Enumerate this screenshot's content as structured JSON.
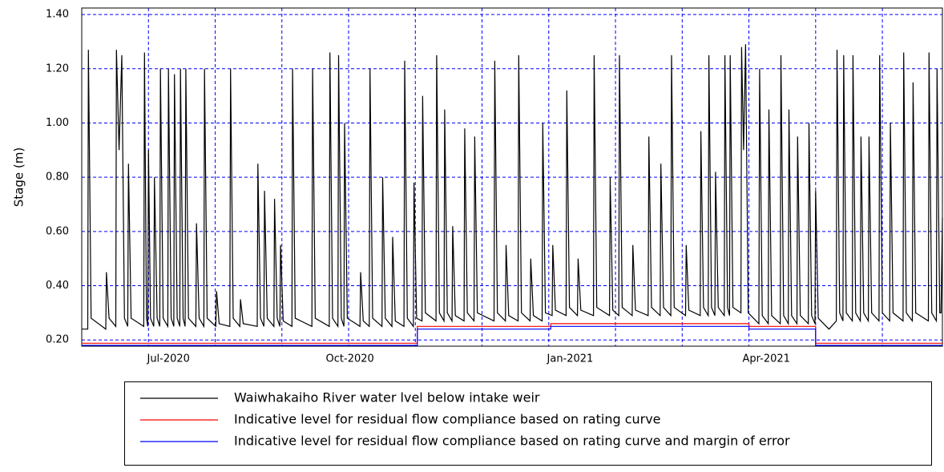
{
  "chart_data": {
    "type": "line",
    "ylabel": "Stage (m)",
    "xlim": [
      0,
      12.9
    ],
    "ylim": [
      0.177,
      1.424
    ],
    "xticks": [
      {
        "value": 1.3,
        "label": "Jul-2020"
      },
      {
        "value": 4.02,
        "label": "Oct-2020"
      },
      {
        "value": 7.32,
        "label": "Jan-2021"
      },
      {
        "value": 10.26,
        "label": "Apr-2021"
      }
    ],
    "xgrid": [
      1,
      2,
      3,
      4,
      5,
      6,
      7,
      8,
      9,
      10,
      11,
      12
    ],
    "yticks": [
      {
        "value": 0.2,
        "label": "0.20"
      },
      {
        "value": 0.4,
        "label": "0.40"
      },
      {
        "value": 0.6,
        "label": "0.60"
      },
      {
        "value": 0.8,
        "label": "0.80"
      },
      {
        "value": 1.0,
        "label": "1.00"
      },
      {
        "value": 1.2,
        "label": "1.20"
      },
      {
        "value": 1.4,
        "label": "1.40"
      }
    ],
    "grid": true,
    "grid_color": "#0000ff",
    "series": [
      {
        "name": "Waiwhakaiho River water lvel below intake weir",
        "color": "#000000",
        "x": [
          0,
          0.09,
          0.1,
          0.14,
          0.36,
          0.37,
          0.41,
          0.51,
          0.52,
          0.56,
          0.6,
          0.64,
          0.69,
          0.7,
          0.74,
          0.93,
          0.94,
          0.97,
          0.99,
          1.0,
          1.03,
          1.08,
          1.09,
          1.13,
          1.17,
          1.18,
          1.22,
          1.29,
          1.3,
          1.34,
          1.38,
          1.39,
          1.43,
          1.47,
          1.48,
          1.52,
          1.55,
          1.56,
          1.6,
          1.71,
          1.72,
          1.76,
          1.83,
          1.84,
          1.88,
          2.01,
          2.02,
          2.06,
          2.22,
          2.23,
          2.27,
          2.37,
          2.38,
          2.42,
          2.63,
          2.64,
          2.68,
          2.73,
          2.74,
          2.78,
          2.88,
          2.89,
          2.93,
          2.97,
          2.98,
          3.02,
          3.15,
          3.16,
          3.2,
          3.45,
          3.46,
          3.5,
          3.71,
          3.72,
          3.76,
          3.84,
          3.85,
          3.89,
          3.93,
          3.94,
          3.98,
          4.17,
          4.18,
          4.22,
          4.31,
          4.32,
          4.36,
          4.5,
          4.51,
          4.55,
          4.65,
          4.66,
          4.7,
          4.83,
          4.84,
          4.88,
          4.97,
          4.98,
          5.02,
          5.1,
          5.11,
          5.15,
          5.31,
          5.32,
          5.36,
          5.43,
          5.44,
          5.48,
          5.55,
          5.56,
          5.6,
          5.73,
          5.74,
          5.78,
          5.88,
          5.89,
          5.93,
          6.18,
          6.19,
          6.23,
          6.35,
          6.36,
          6.4,
          6.54,
          6.55,
          6.59,
          6.72,
          6.73,
          6.77,
          6.9,
          6.91,
          6.95,
          7.05,
          7.06,
          7.1,
          7.26,
          7.27,
          7.31,
          7.43,
          7.44,
          7.48,
          7.67,
          7.68,
          7.72,
          7.91,
          7.92,
          7.96,
          8.05,
          8.06,
          8.1,
          8.25,
          8.26,
          8.3,
          8.49,
          8.5,
          8.54,
          8.67,
          8.68,
          8.72,
          8.83,
          8.84,
          8.88,
          9.05,
          9.06,
          9.1,
          9.27,
          9.28,
          9.32,
          9.39,
          9.4,
          9.44,
          9.49,
          9.5,
          9.54,
          9.63,
          9.64,
          9.68,
          9.71,
          9.72,
          9.76,
          9.88,
          9.89,
          9.92,
          9.95,
          9.99,
          10.15,
          10.16,
          10.2,
          10.29,
          10.3,
          10.34,
          10.47,
          10.48,
          10.52,
          10.59,
          10.6,
          10.64,
          10.72,
          10.73,
          10.77,
          10.89,
          10.9,
          10.94,
          10.99,
          11.0,
          11.04,
          11.2,
          11.31,
          11.32,
          11.36,
          11.41,
          11.42,
          11.46,
          11.55,
          11.56,
          11.6,
          11.67,
          11.68,
          11.72,
          11.79,
          11.8,
          11.84,
          11.95,
          11.96,
          12.0,
          12.11,
          12.12,
          12.16,
          12.31,
          12.32,
          12.36,
          12.45,
          12.46,
          12.5,
          12.69,
          12.7,
          12.74,
          12.81,
          12.82,
          12.86,
          12.88,
          12.9
        ],
        "values": [
          0.24,
          0.24,
          1.27,
          0.28,
          0.24,
          0.45,
          0.28,
          0.25,
          1.27,
          0.9,
          1.25,
          0.28,
          0.25,
          0.85,
          0.28,
          0.25,
          1.26,
          0.28,
          0.25,
          0.9,
          0.28,
          0.25,
          0.8,
          0.28,
          0.25,
          1.2,
          0.28,
          0.25,
          1.2,
          0.28,
          0.25,
          1.18,
          0.28,
          0.25,
          1.2,
          0.28,
          0.25,
          1.2,
          0.28,
          0.25,
          0.63,
          0.28,
          0.25,
          1.2,
          0.28,
          0.25,
          0.38,
          0.26,
          0.25,
          1.2,
          0.28,
          0.25,
          0.35,
          0.26,
          0.25,
          0.85,
          0.28,
          0.25,
          0.75,
          0.28,
          0.25,
          0.72,
          0.28,
          0.25,
          0.55,
          0.27,
          0.25,
          1.2,
          0.28,
          0.25,
          1.2,
          0.28,
          0.25,
          1.26,
          0.28,
          0.25,
          1.25,
          0.28,
          0.25,
          1.0,
          0.28,
          0.25,
          0.45,
          0.27,
          0.25,
          1.2,
          0.28,
          0.25,
          0.8,
          0.28,
          0.25,
          0.58,
          0.27,
          0.25,
          1.23,
          0.28,
          0.25,
          0.78,
          0.28,
          0.27,
          1.1,
          0.3,
          0.27,
          1.25,
          0.3,
          0.27,
          1.05,
          0.3,
          0.27,
          0.62,
          0.29,
          0.27,
          0.98,
          0.3,
          0.27,
          0.95,
          0.3,
          0.27,
          1.23,
          0.3,
          0.27,
          0.55,
          0.29,
          0.27,
          1.25,
          0.3,
          0.27,
          0.5,
          0.29,
          0.27,
          1.0,
          0.3,
          0.29,
          0.55,
          0.31,
          0.29,
          1.12,
          0.32,
          0.29,
          0.5,
          0.31,
          0.29,
          1.25,
          0.32,
          0.29,
          0.8,
          0.31,
          0.29,
          1.25,
          0.32,
          0.29,
          0.55,
          0.31,
          0.29,
          0.95,
          0.32,
          0.29,
          0.85,
          0.32,
          0.29,
          1.25,
          0.32,
          0.29,
          0.55,
          0.31,
          0.29,
          0.97,
          0.32,
          0.29,
          1.25,
          0.32,
          0.29,
          0.82,
          0.32,
          0.29,
          1.25,
          0.32,
          0.29,
          1.25,
          0.32,
          0.3,
          1.28,
          0.9,
          1.29,
          0.3,
          0.26,
          1.2,
          0.29,
          0.26,
          1.05,
          0.29,
          0.26,
          1.25,
          0.29,
          0.26,
          1.05,
          0.29,
          0.26,
          0.95,
          0.29,
          0.26,
          1.0,
          0.29,
          0.26,
          0.75,
          0.28,
          0.24,
          0.27,
          1.27,
          0.3,
          0.27,
          1.25,
          0.3,
          0.27,
          1.25,
          0.3,
          0.27,
          0.95,
          0.3,
          0.27,
          0.95,
          0.3,
          0.27,
          1.25,
          0.3,
          0.27,
          1.0,
          0.3,
          0.27,
          1.26,
          0.3,
          0.27,
          1.15,
          0.3,
          0.27,
          1.26,
          0.3,
          0.27,
          1.2,
          0.3,
          0.3,
          0.65
        ]
      },
      {
        "name": "Indicative level for residual flow compliance based on rating curve",
        "color": "#ff0000",
        "x": [
          0,
          5.03,
          5.03,
          7.03,
          7.03,
          10.0,
          10.0,
          11.0,
          11.0,
          12.9
        ],
        "values": [
          0.188,
          0.188,
          0.25,
          0.25,
          0.26,
          0.26,
          0.25,
          0.25,
          0.188,
          0.188
        ]
      },
      {
        "name": "Indicative level for residual flow compliance based on rating curve and margin of error",
        "color": "#0000ff",
        "x": [
          0,
          5.03,
          5.03,
          7.03,
          7.03,
          10.0,
          10.0,
          11.0,
          11.0,
          12.9
        ],
        "values": [
          0.18,
          0.18,
          0.24,
          0.24,
          0.25,
          0.25,
          0.24,
          0.24,
          0.18,
          0.18
        ]
      }
    ]
  }
}
